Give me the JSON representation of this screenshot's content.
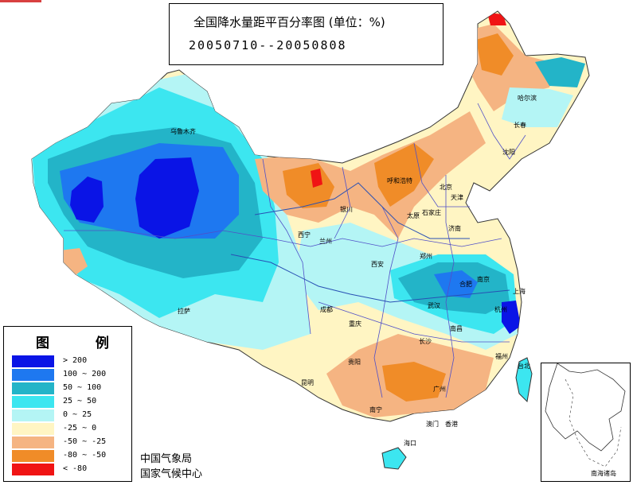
{
  "title": "全国降水量距平百分率图 (单位：%)",
  "date_range": "20050710--20050808",
  "legend": {
    "title": "图  例",
    "items": [
      {
        "label": "> 200",
        "color": "#0a14e6"
      },
      {
        "label": "100 ~ 200",
        "color": "#1e78f0"
      },
      {
        "label": "50 ~ 100",
        "color": "#23b4c8"
      },
      {
        "label": "25 ~ 50",
        "color": "#3ce6f0"
      },
      {
        "label": "0 ~ 25",
        "color": "#b4f5f5"
      },
      {
        "label": "-25 ~ 0",
        "color": "#fff5c3"
      },
      {
        "label": "-50 ~ -25",
        "color": "#f5b482"
      },
      {
        "label": "-80 ~ -50",
        "color": "#f08c28"
      },
      {
        "label": "< -80",
        "color": "#f01414"
      }
    ]
  },
  "agency": [
    "中国气象局",
    "国家气候中心"
  ],
  "inset_label": "南海诸岛",
  "cities": [
    {
      "name": "乌鲁木齐",
      "id": "urumqi"
    },
    {
      "name": "哈尔滨",
      "id": "harbin"
    },
    {
      "name": "长春",
      "id": "changchun"
    },
    {
      "name": "沈阳",
      "id": "shenyang"
    },
    {
      "name": "呼和浩特",
      "id": "hohhot"
    },
    {
      "name": "北京",
      "id": "beijing"
    },
    {
      "name": "天津",
      "id": "tianjin"
    },
    {
      "name": "太原",
      "id": "taiyuan"
    },
    {
      "name": "石家庄",
      "id": "shijiazhuang"
    },
    {
      "name": "济南",
      "id": "jinan"
    },
    {
      "name": "银川",
      "id": "yinchuan"
    },
    {
      "name": "西宁",
      "id": "xining"
    },
    {
      "name": "兰州",
      "id": "lanzhou"
    },
    {
      "name": "西安",
      "id": "xian"
    },
    {
      "name": "郑州",
      "id": "zhengzhou"
    },
    {
      "name": "合肥",
      "id": "hefei"
    },
    {
      "name": "南京",
      "id": "nanjing"
    },
    {
      "name": "上海",
      "id": "shanghai"
    },
    {
      "name": "武汉",
      "id": "wuhan"
    },
    {
      "name": "杭州",
      "id": "hangzhou"
    },
    {
      "name": "南昌",
      "id": "nanchang"
    },
    {
      "name": "长沙",
      "id": "changsha"
    },
    {
      "name": "成都",
      "id": "chengdu"
    },
    {
      "name": "重庆",
      "id": "chongqing"
    },
    {
      "name": "贵阳",
      "id": "guiyang"
    },
    {
      "name": "昆明",
      "id": "kunming"
    },
    {
      "name": "拉萨",
      "id": "lhasa"
    },
    {
      "name": "福州",
      "id": "fuzhou"
    },
    {
      "name": "台北",
      "id": "taipei"
    },
    {
      "name": "广州",
      "id": "guangzhou"
    },
    {
      "name": "南宁",
      "id": "nanning"
    },
    {
      "name": "香港",
      "id": "hongkong"
    },
    {
      "name": "澳门",
      "id": "macau"
    },
    {
      "name": "海口",
      "id": "haikou"
    }
  ]
}
